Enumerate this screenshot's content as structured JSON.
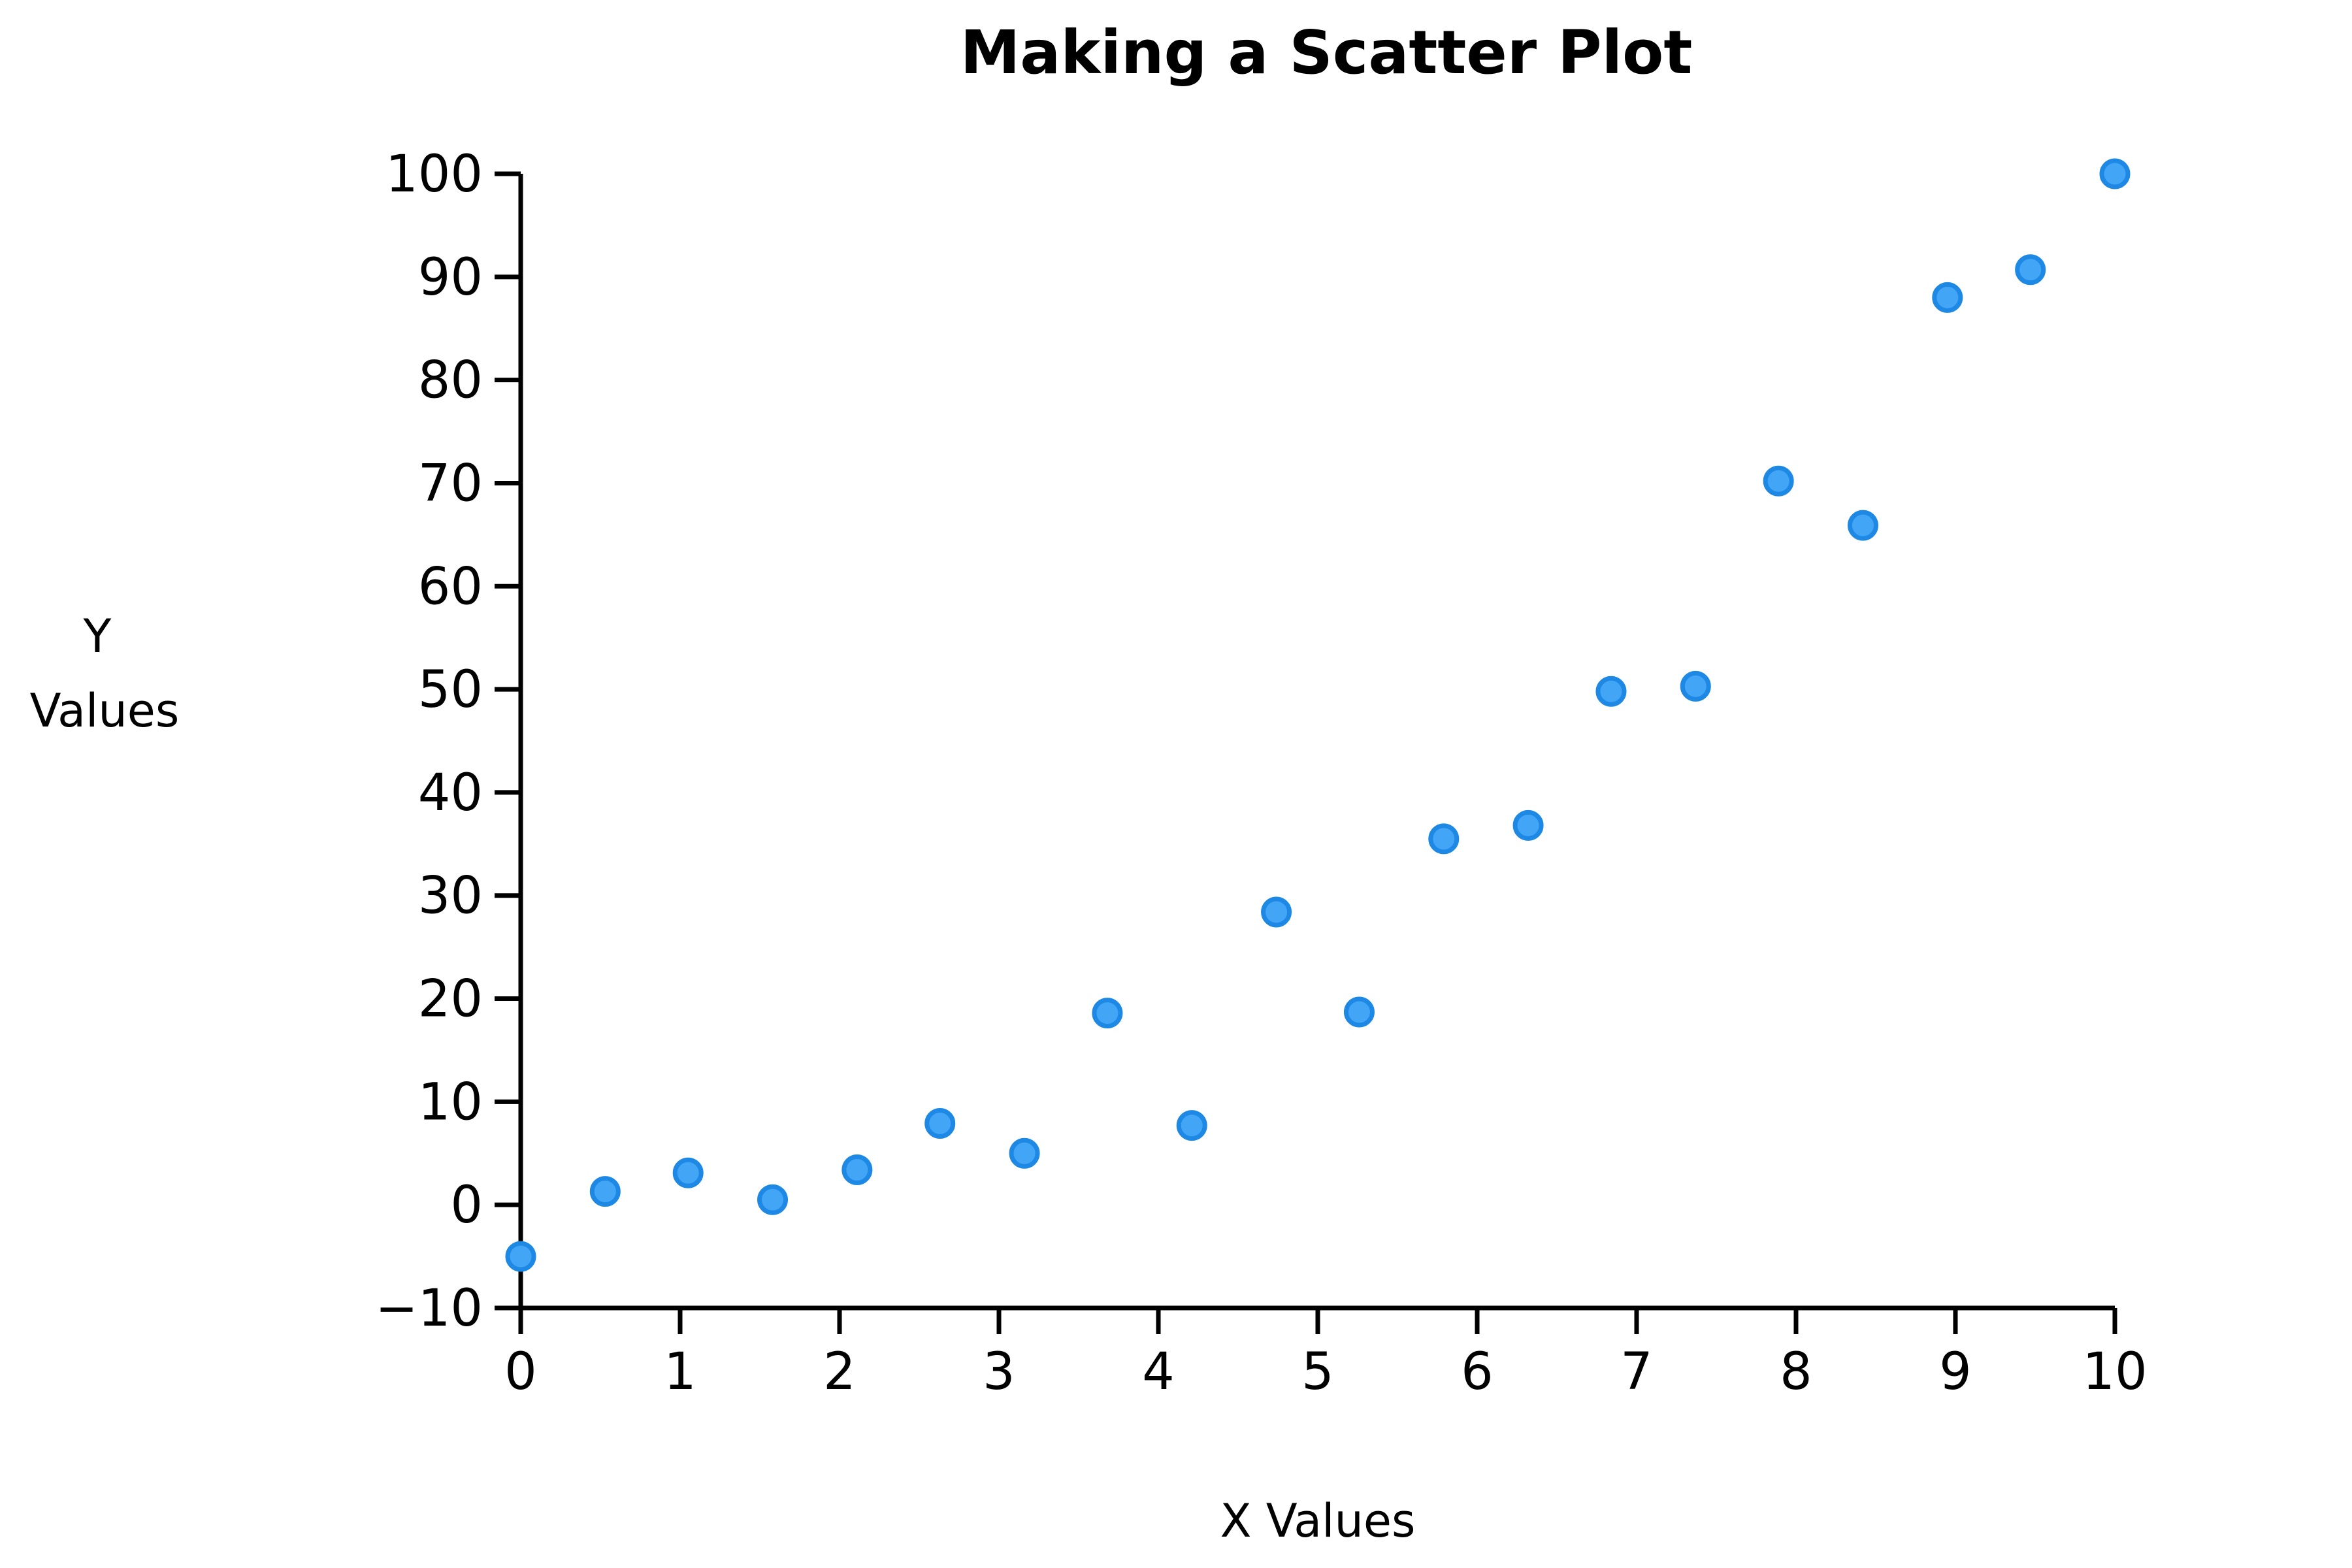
{
  "chart_data": {
    "type": "scatter",
    "title": "Making a Scatter Plot",
    "xlabel": "X Values",
    "ylabel_lines": [
      "Y",
      "Values"
    ],
    "xlim": [
      0,
      10
    ],
    "ylim": [
      -10,
      100
    ],
    "xticks": [
      0,
      1,
      2,
      3,
      4,
      5,
      6,
      7,
      8,
      9,
      10
    ],
    "xtick_labels": [
      "0",
      "1",
      "2",
      "3",
      "4",
      "5",
      "6",
      "7",
      "8",
      "9",
      "10"
    ],
    "yticks": [
      -10,
      0,
      10,
      20,
      30,
      40,
      50,
      60,
      70,
      80,
      90,
      100
    ],
    "ytick_labels": [
      "−10",
      "0",
      "10",
      "20",
      "30",
      "40",
      "50",
      "60",
      "70",
      "80",
      "90",
      "100"
    ],
    "grid": false,
    "marker_fill": "#42A5F5",
    "marker_edge": "#1E88E5",
    "points": [
      {
        "x": 0.0,
        "y": -5.0
      },
      {
        "x": 0.53,
        "y": 1.3
      },
      {
        "x": 1.05,
        "y": 3.1
      },
      {
        "x": 1.58,
        "y": 0.5
      },
      {
        "x": 2.11,
        "y": 3.4
      },
      {
        "x": 2.63,
        "y": 7.9
      },
      {
        "x": 3.16,
        "y": 5.0
      },
      {
        "x": 3.68,
        "y": 18.6
      },
      {
        "x": 4.21,
        "y": 7.7
      },
      {
        "x": 4.74,
        "y": 28.4
      },
      {
        "x": 5.26,
        "y": 18.7
      },
      {
        "x": 5.79,
        "y": 35.5
      },
      {
        "x": 6.32,
        "y": 36.8
      },
      {
        "x": 6.84,
        "y": 49.8
      },
      {
        "x": 7.37,
        "y": 50.3
      },
      {
        "x": 7.89,
        "y": 70.2
      },
      {
        "x": 8.42,
        "y": 65.9
      },
      {
        "x": 8.95,
        "y": 88.0
      },
      {
        "x": 9.47,
        "y": 90.7
      },
      {
        "x": 10.0,
        "y": 100.0
      }
    ]
  }
}
